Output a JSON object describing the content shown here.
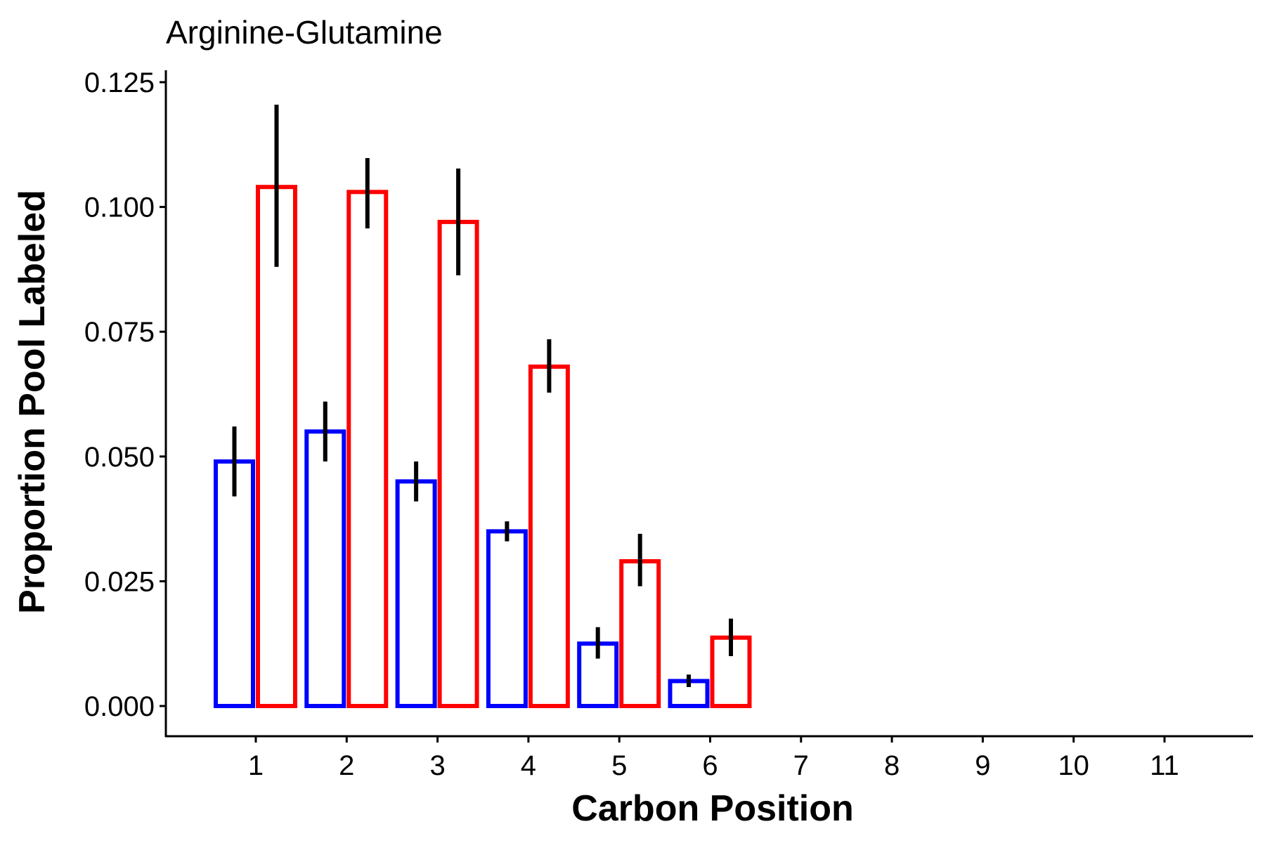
{
  "chart_data": {
    "type": "bar",
    "title": "Arginine-Glutamine",
    "xlabel": "Carbon Position",
    "ylabel": "Proportion Pool Labeled",
    "categories": [
      "1",
      "2",
      "3",
      "4",
      "5",
      "6",
      "7",
      "8",
      "9",
      "10",
      "11"
    ],
    "ylim": [
      -0.006,
      0.126
    ],
    "yticks": [
      0.0,
      0.025,
      0.05,
      0.075,
      0.1,
      0.125
    ],
    "ytick_labels": [
      "0.000",
      "0.025",
      "0.050",
      "0.075",
      "0.100",
      "0.125"
    ],
    "grid": false,
    "legend": "none",
    "series": [
      {
        "color": "#0000ff",
        "values": [
          0.049,
          0.055,
          0.045,
          0.035,
          0.0125,
          0.005,
          0,
          0,
          0,
          0,
          0
        ],
        "error_low": [
          0.042,
          0.049,
          0.041,
          0.033,
          0.0095,
          0.0038,
          0,
          0,
          0,
          0,
          0
        ],
        "error_high": [
          0.056,
          0.061,
          0.049,
          0.037,
          0.0158,
          0.0063,
          0,
          0,
          0,
          0,
          0
        ]
      },
      {
        "color": "#ff0000",
        "values": [
          0.104,
          0.103,
          0.097,
          0.068,
          0.029,
          0.0137,
          0,
          0,
          0,
          0,
          0
        ],
        "error_low": [
          0.088,
          0.0957,
          0.0863,
          0.0628,
          0.024,
          0.01,
          0,
          0,
          0,
          0,
          0
        ],
        "error_high": [
          0.1205,
          0.1098,
          0.1077,
          0.0735,
          0.0345,
          0.0175,
          0,
          0,
          0,
          0,
          0
        ]
      }
    ],
    "error_bar_color": "#000000"
  }
}
